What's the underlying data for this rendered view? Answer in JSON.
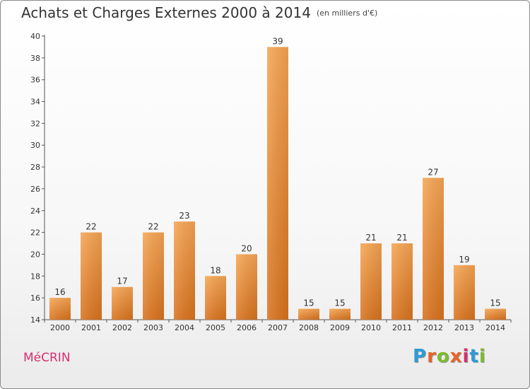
{
  "header": {
    "title": "Achats et Charges Externes 2000 à 2014",
    "subtitle": "(en milliers d'€)"
  },
  "footer": {
    "location": "MéCRIN",
    "logo_letters": [
      "P",
      "r",
      "o",
      "x",
      "i",
      "t",
      "i"
    ],
    "logo_colors": [
      "#2e9bd6",
      "#e8632a",
      "#7dbb2e",
      "#e8632a",
      "#d62f6e",
      "#2e9bd6",
      "#7dbb2e"
    ]
  },
  "colors": {
    "bar_light": "#f7a654",
    "bar_dark": "#d9731e",
    "axis": "#555555",
    "grid_tick": "#555555"
  },
  "chart_data": {
    "type": "bar",
    "title": "Achats et Charges Externes 2000 à 2014",
    "subtitle": "(en milliers d'€)",
    "categories": [
      "2000",
      "2001",
      "2002",
      "2003",
      "2004",
      "2005",
      "2006",
      "2007",
      "2008",
      "2009",
      "2010",
      "2011",
      "2012",
      "2013",
      "2014"
    ],
    "values": [
      16,
      22,
      17,
      22,
      23,
      18,
      20,
      39,
      15,
      15,
      21,
      21,
      27,
      19,
      15
    ],
    "ylim": [
      14,
      40
    ],
    "yticks": [
      14,
      16,
      18,
      20,
      22,
      24,
      26,
      28,
      30,
      32,
      34,
      36,
      38,
      40
    ],
    "grid": false,
    "legend": "none"
  }
}
